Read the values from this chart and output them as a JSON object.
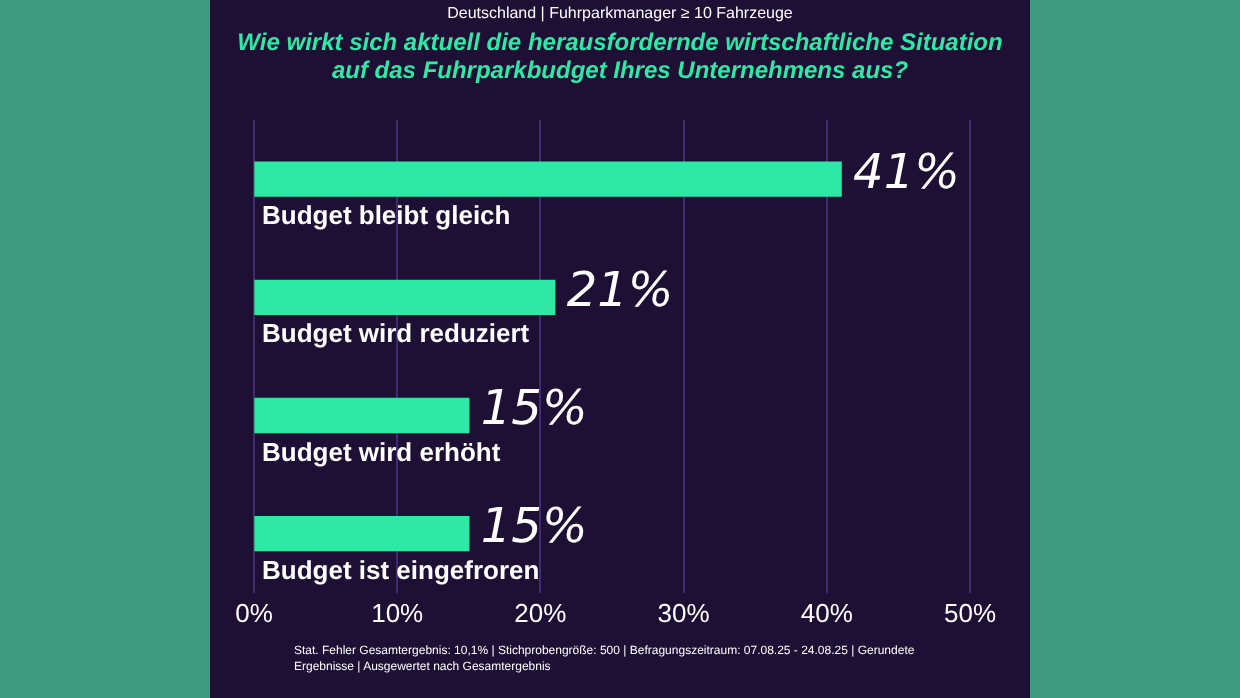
{
  "chart_data": {
    "type": "bar",
    "orientation": "horizontal",
    "subtitle": "Deutschland | Fuhrparkmanager ≥ 10 Fahrzeuge",
    "title": "Wie wirkt sich aktuell die herausfordernde wirtschaftliche Situation auf das Fuhrparkbudget Ihres Unternehmens aus?",
    "categories": [
      "Budget bleibt gleich",
      "Budget wird reduziert",
      "Budget wird erhöht",
      "Budget ist eingefroren"
    ],
    "values": [
      41,
      21,
      15,
      15
    ],
    "color": "#2ee8a5",
    "value_labels": [
      "41%",
      "21%",
      "15%",
      "15%"
    ],
    "xlim": [
      0,
      50
    ],
    "xticks": [
      {
        "value": 0,
        "label": "0%"
      },
      {
        "value": 10,
        "label": "10%"
      },
      {
        "value": 20,
        "label": "20%"
      },
      {
        "value": 30,
        "label": "30%"
      },
      {
        "value": 40,
        "label": "40%"
      },
      {
        "value": 50,
        "label": "50%"
      }
    ],
    "grid": "x",
    "legend": false,
    "annotations": [
      "Stat. Fehler Gesamtergebnis: 10,1% | Stichprobengröße: 500 | Befragungszeitraum: 07.08.25 - 24.08.25 | Gerundete Ergebnisse | Ausgewertet nach Gesamtergebnis"
    ]
  }
}
